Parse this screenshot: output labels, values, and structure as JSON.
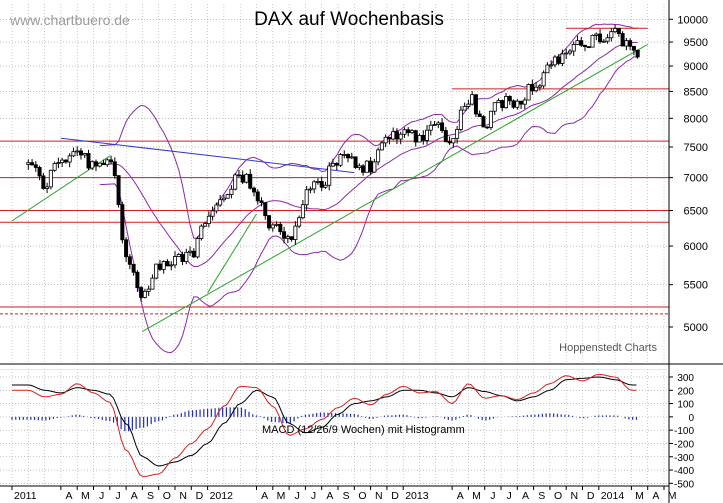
{
  "watermark": "www.chartbuero.de",
  "credit": "Hoppenstedt Charts",
  "chart_data": [
    {
      "type": "candlestick",
      "title": "DAX auf Wochenbasis",
      "y_scale": "log",
      "ylim": [
        4600,
        10350
      ],
      "y_ticks": [
        10000,
        9500,
        9000,
        8500,
        8000,
        7500,
        7000,
        6500,
        6000,
        5500,
        5000
      ],
      "x_ticks": [
        "2011",
        "A",
        "M",
        "J",
        "J",
        "A",
        "S",
        "O",
        "N",
        "D",
        "2012",
        "A",
        "M",
        "J",
        "J",
        "A",
        "S",
        "O",
        "N",
        "D",
        "2013",
        "A",
        "M",
        "J",
        "J",
        "A",
        "S",
        "O",
        "N",
        "D",
        "2014",
        "M",
        "A",
        "M"
      ],
      "weekly_close": {
        "start": "2011-02",
        "end": "2014-03",
        "anchors": [
          [
            "2011-02",
            7200
          ],
          [
            "2011-03",
            6900
          ],
          [
            "2011-04",
            7300
          ],
          [
            "2011-05",
            7450
          ],
          [
            "2011-06",
            7200
          ],
          [
            "2011-07",
            7350
          ],
          [
            "2011-08",
            5900
          ],
          [
            "2011-09",
            5300
          ],
          [
            "2011-10",
            5700
          ],
          [
            "2011-11",
            5800
          ],
          [
            "2011-12",
            5900
          ],
          [
            "2012-01",
            6400
          ],
          [
            "2012-02",
            6800
          ],
          [
            "2012-03",
            7050
          ],
          [
            "2012-04",
            6700
          ],
          [
            "2012-05",
            6300
          ],
          [
            "2012-06",
            6100
          ],
          [
            "2012-07",
            6700
          ],
          [
            "2012-08",
            6950
          ],
          [
            "2012-09",
            7300
          ],
          [
            "2012-10",
            7250
          ],
          [
            "2012-11",
            7150
          ],
          [
            "2012-12",
            7650
          ],
          [
            "2013-01",
            7750
          ],
          [
            "2013-02",
            7700
          ],
          [
            "2013-03",
            7850
          ],
          [
            "2013-04",
            7650
          ],
          [
            "2013-05",
            8400
          ],
          [
            "2013-06",
            7900
          ],
          [
            "2013-07",
            8300
          ],
          [
            "2013-08",
            8350
          ],
          [
            "2013-09",
            8600
          ],
          [
            "2013-10",
            9000
          ],
          [
            "2013-11",
            9300
          ],
          [
            "2013-12",
            9400
          ],
          [
            "2014-01",
            9600
          ],
          [
            "2014-02",
            9650
          ],
          [
            "2014-03",
            9300
          ]
        ]
      },
      "horizontal_levels": [
        9800,
        8550,
        7600,
        7000,
        6500,
        6330,
        5230,
        5150
      ],
      "resistance_line": {
        "from": [
          "2011-04",
          7650
        ],
        "to": [
          "2012-10",
          7080
        ]
      },
      "support_lines": [
        {
          "from": [
            "2011-01",
            6350
          ],
          "to": [
            "2011-07",
            7350
          ]
        },
        {
          "from": [
            "2011-09",
            4950
          ],
          "to": [
            "2014-04",
            9450
          ]
        },
        {
          "from": [
            "2012-01",
            5400
          ],
          "to": [
            "2012-04",
            6450
          ]
        }
      ],
      "bollinger_bands": true
    },
    {
      "type": "line",
      "title": "MACD (12/26/9 Wochen) mit Histogramm",
      "ylim": [
        -520,
        360
      ],
      "y_ticks": [
        300,
        200,
        100,
        0,
        -100,
        -200,
        -300,
        -400,
        -500
      ],
      "series": [
        {
          "color": "#000000",
          "anchors": [
            [
              "2011-02",
              240
            ],
            [
              "2011-03",
              200
            ],
            [
              "2011-04",
              180
            ],
            [
              "2011-05",
              220
            ],
            [
              "2011-06",
              200
            ],
            [
              "2011-07",
              170
            ],
            [
              "2011-08",
              -50
            ],
            [
              "2011-09",
              -300
            ],
            [
              "2011-10",
              -370
            ],
            [
              "2011-11",
              -340
            ],
            [
              "2011-12",
              -290
            ],
            [
              "2012-01",
              -200
            ],
            [
              "2012-02",
              -50
            ],
            [
              "2012-03",
              100
            ],
            [
              "2012-04",
              200
            ],
            [
              "2012-05",
              150
            ],
            [
              "2012-06",
              -50
            ],
            [
              "2012-07",
              -120
            ],
            [
              "2012-08",
              -80
            ],
            [
              "2012-09",
              20
            ],
            [
              "2012-10",
              100
            ],
            [
              "2012-11",
              120
            ],
            [
              "2012-12",
              150
            ],
            [
              "2013-01",
              200
            ],
            [
              "2013-02",
              200
            ],
            [
              "2013-03",
              180
            ],
            [
              "2013-04",
              150
            ],
            [
              "2013-05",
              220
            ],
            [
              "2013-06",
              190
            ],
            [
              "2013-07",
              160
            ],
            [
              "2013-08",
              120
            ],
            [
              "2013-09",
              150
            ],
            [
              "2013-10",
              200
            ],
            [
              "2013-11",
              280
            ],
            [
              "2013-12",
              290
            ],
            [
              "2014-01",
              300
            ],
            [
              "2014-02",
              280
            ],
            [
              "2014-03",
              240
            ]
          ]
        },
        {
          "color": "#d62020",
          "anchors": [
            [
              "2011-02",
              200
            ],
            [
              "2011-03",
              150
            ],
            [
              "2011-04",
              170
            ],
            [
              "2011-05",
              250
            ],
            [
              "2011-06",
              180
            ],
            [
              "2011-07",
              110
            ],
            [
              "2011-08",
              -250
            ],
            [
              "2011-09",
              -450
            ],
            [
              "2011-10",
              -430
            ],
            [
              "2011-11",
              -310
            ],
            [
              "2011-12",
              -200
            ],
            [
              "2012-01",
              -90
            ],
            [
              "2012-02",
              80
            ],
            [
              "2012-03",
              230
            ],
            [
              "2012-04",
              220
            ],
            [
              "2012-05",
              80
            ],
            [
              "2012-06",
              -140
            ],
            [
              "2012-07",
              -90
            ],
            [
              "2012-08",
              -20
            ],
            [
              "2012-09",
              70
            ],
            [
              "2012-10",
              140
            ],
            [
              "2012-11",
              90
            ],
            [
              "2012-12",
              170
            ],
            [
              "2013-01",
              230
            ],
            [
              "2013-02",
              180
            ],
            [
              "2013-03",
              190
            ],
            [
              "2013-04",
              100
            ],
            [
              "2013-05",
              250
            ],
            [
              "2013-06",
              140
            ],
            [
              "2013-07",
              160
            ],
            [
              "2013-08",
              130
            ],
            [
              "2013-09",
              180
            ],
            [
              "2013-10",
              250
            ],
            [
              "2013-11",
              310
            ],
            [
              "2013-12",
              270
            ],
            [
              "2014-01",
              320
            ],
            [
              "2014-02",
              300
            ],
            [
              "2014-03",
              200
            ]
          ]
        }
      ],
      "histogram_color": "#1f2fb5"
    }
  ],
  "colors": {
    "candle": "#000000",
    "band": "#8a2aa8",
    "horizontal_level": "#d21e1e",
    "resistance": "#2e3fc9",
    "support": "#29a329",
    "grid": "#9a9a9a",
    "axis": "#000000"
  }
}
